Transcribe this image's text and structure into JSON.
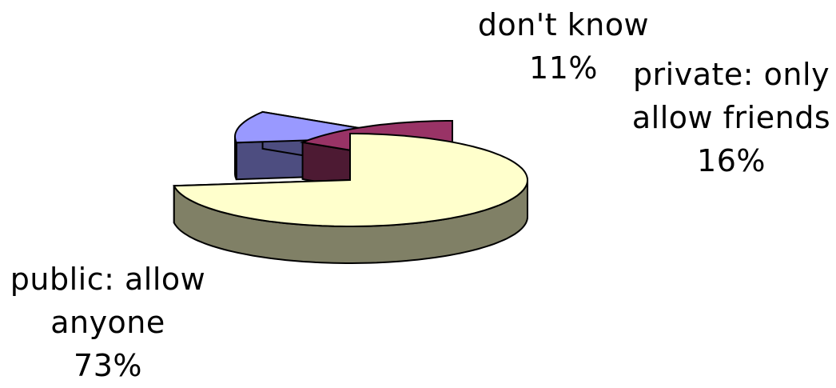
{
  "chart_data": {
    "type": "pie",
    "style": "3d-exploded",
    "slices": [
      {
        "label_lines": [
          "public: allow",
          "anyone"
        ],
        "percent_text": "73%",
        "value": 73,
        "top_color": "#FFFFCC",
        "side_color": "#808066"
      },
      {
        "label_lines": [
          "don't know"
        ],
        "percent_text": "11%",
        "value": 11,
        "top_color": "#9999FF",
        "side_color": "#4D4D80"
      },
      {
        "label_lines": [
          "private: only",
          "allow friends"
        ],
        "percent_text": "16%",
        "value": 16,
        "top_color": "#993366",
        "side_color": "#4D1A33"
      }
    ],
    "legend": "none",
    "outline_color": "#000000"
  }
}
